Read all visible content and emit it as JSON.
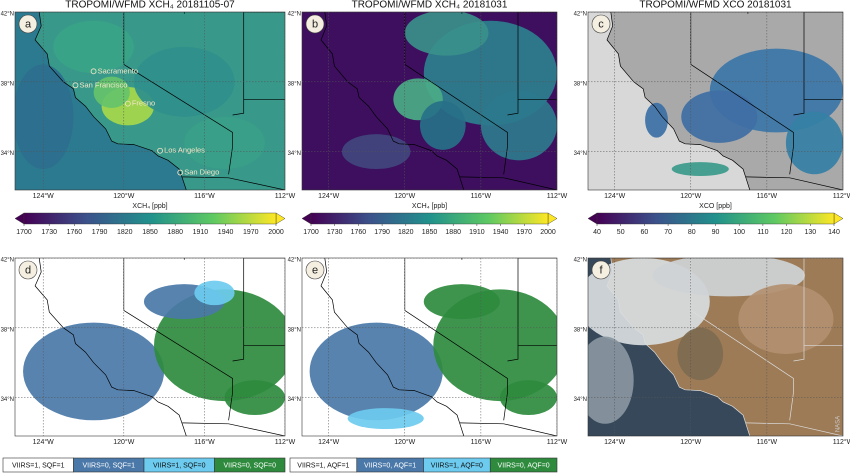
{
  "figure": {
    "panels": [
      {
        "letter": "a",
        "title": "TROPOMI/WFMD XCH₄ 20181105-07",
        "colorbar": {
          "label": "XCH₄ [ppb]",
          "lim": [
            1700,
            2000
          ],
          "ticks": [
            1700,
            1730,
            1760,
            1790,
            1820,
            1850,
            1880,
            1910,
            1940,
            1970,
            2000
          ]
        }
      },
      {
        "letter": "b",
        "title": "TROPOMI/WFMD XCH₄ 20181031",
        "colorbar": {
          "label": "XCH₄ [ppb]",
          "lim": [
            1700,
            2000
          ],
          "ticks": [
            1700,
            1730,
            1760,
            1790,
            1820,
            1850,
            1880,
            1910,
            1940,
            1970,
            2000
          ]
        }
      },
      {
        "letter": "c",
        "title": "TROPOMI/WFMD XCO 20181031",
        "colorbar": {
          "label": "XCO [ppb]",
          "lim": [
            40,
            140
          ],
          "ticks": [
            40,
            50,
            60,
            70,
            80,
            90,
            100,
            110,
            120,
            130,
            140
          ]
        }
      },
      {
        "letter": "d",
        "legend": [
          {
            "name": "VIIRS=1, SQF=1",
            "color": "#ffffff"
          },
          {
            "name": "VIIRS=0, SQF=1",
            "color": "#4a78a8"
          },
          {
            "name": "VIIRS=1, SQF=0",
            "color": "#6ccbef"
          },
          {
            "name": "VIIRS=0, SQF=0",
            "color": "#2e8b3e"
          }
        ]
      },
      {
        "letter": "e",
        "legend": [
          {
            "name": "VIIRS=1, AQF=1",
            "color": "#ffffff"
          },
          {
            "name": "VIIRS=0, AQF=1",
            "color": "#4a78a8"
          },
          {
            "name": "VIIRS=1, AQF=0",
            "color": "#6ccbef"
          },
          {
            "name": "VIIRS=0, AQF=0",
            "color": "#2e8b3e"
          }
        ]
      },
      {
        "letter": "f",
        "credit": "NASA"
      }
    ],
    "map_axes": {
      "lon_lim": [
        -125.4,
        -112
      ],
      "lat_lim": [
        31.8,
        42
      ],
      "lon_ticks": [
        {
          "value": -124,
          "label": "124°W"
        },
        {
          "value": -120,
          "label": "120°W"
        },
        {
          "value": -116,
          "label": "116°W"
        },
        {
          "value": -112,
          "label": "112°W"
        }
      ],
      "lat_ticks": [
        {
          "value": 42,
          "label": "42°N"
        },
        {
          "value": 38,
          "label": "38°N"
        },
        {
          "value": 34,
          "label": "34°N"
        }
      ]
    },
    "cities": [
      "Sacramento",
      "San Francisco",
      "Fresno",
      "Los Angeles",
      "San Diego"
    ]
  }
}
